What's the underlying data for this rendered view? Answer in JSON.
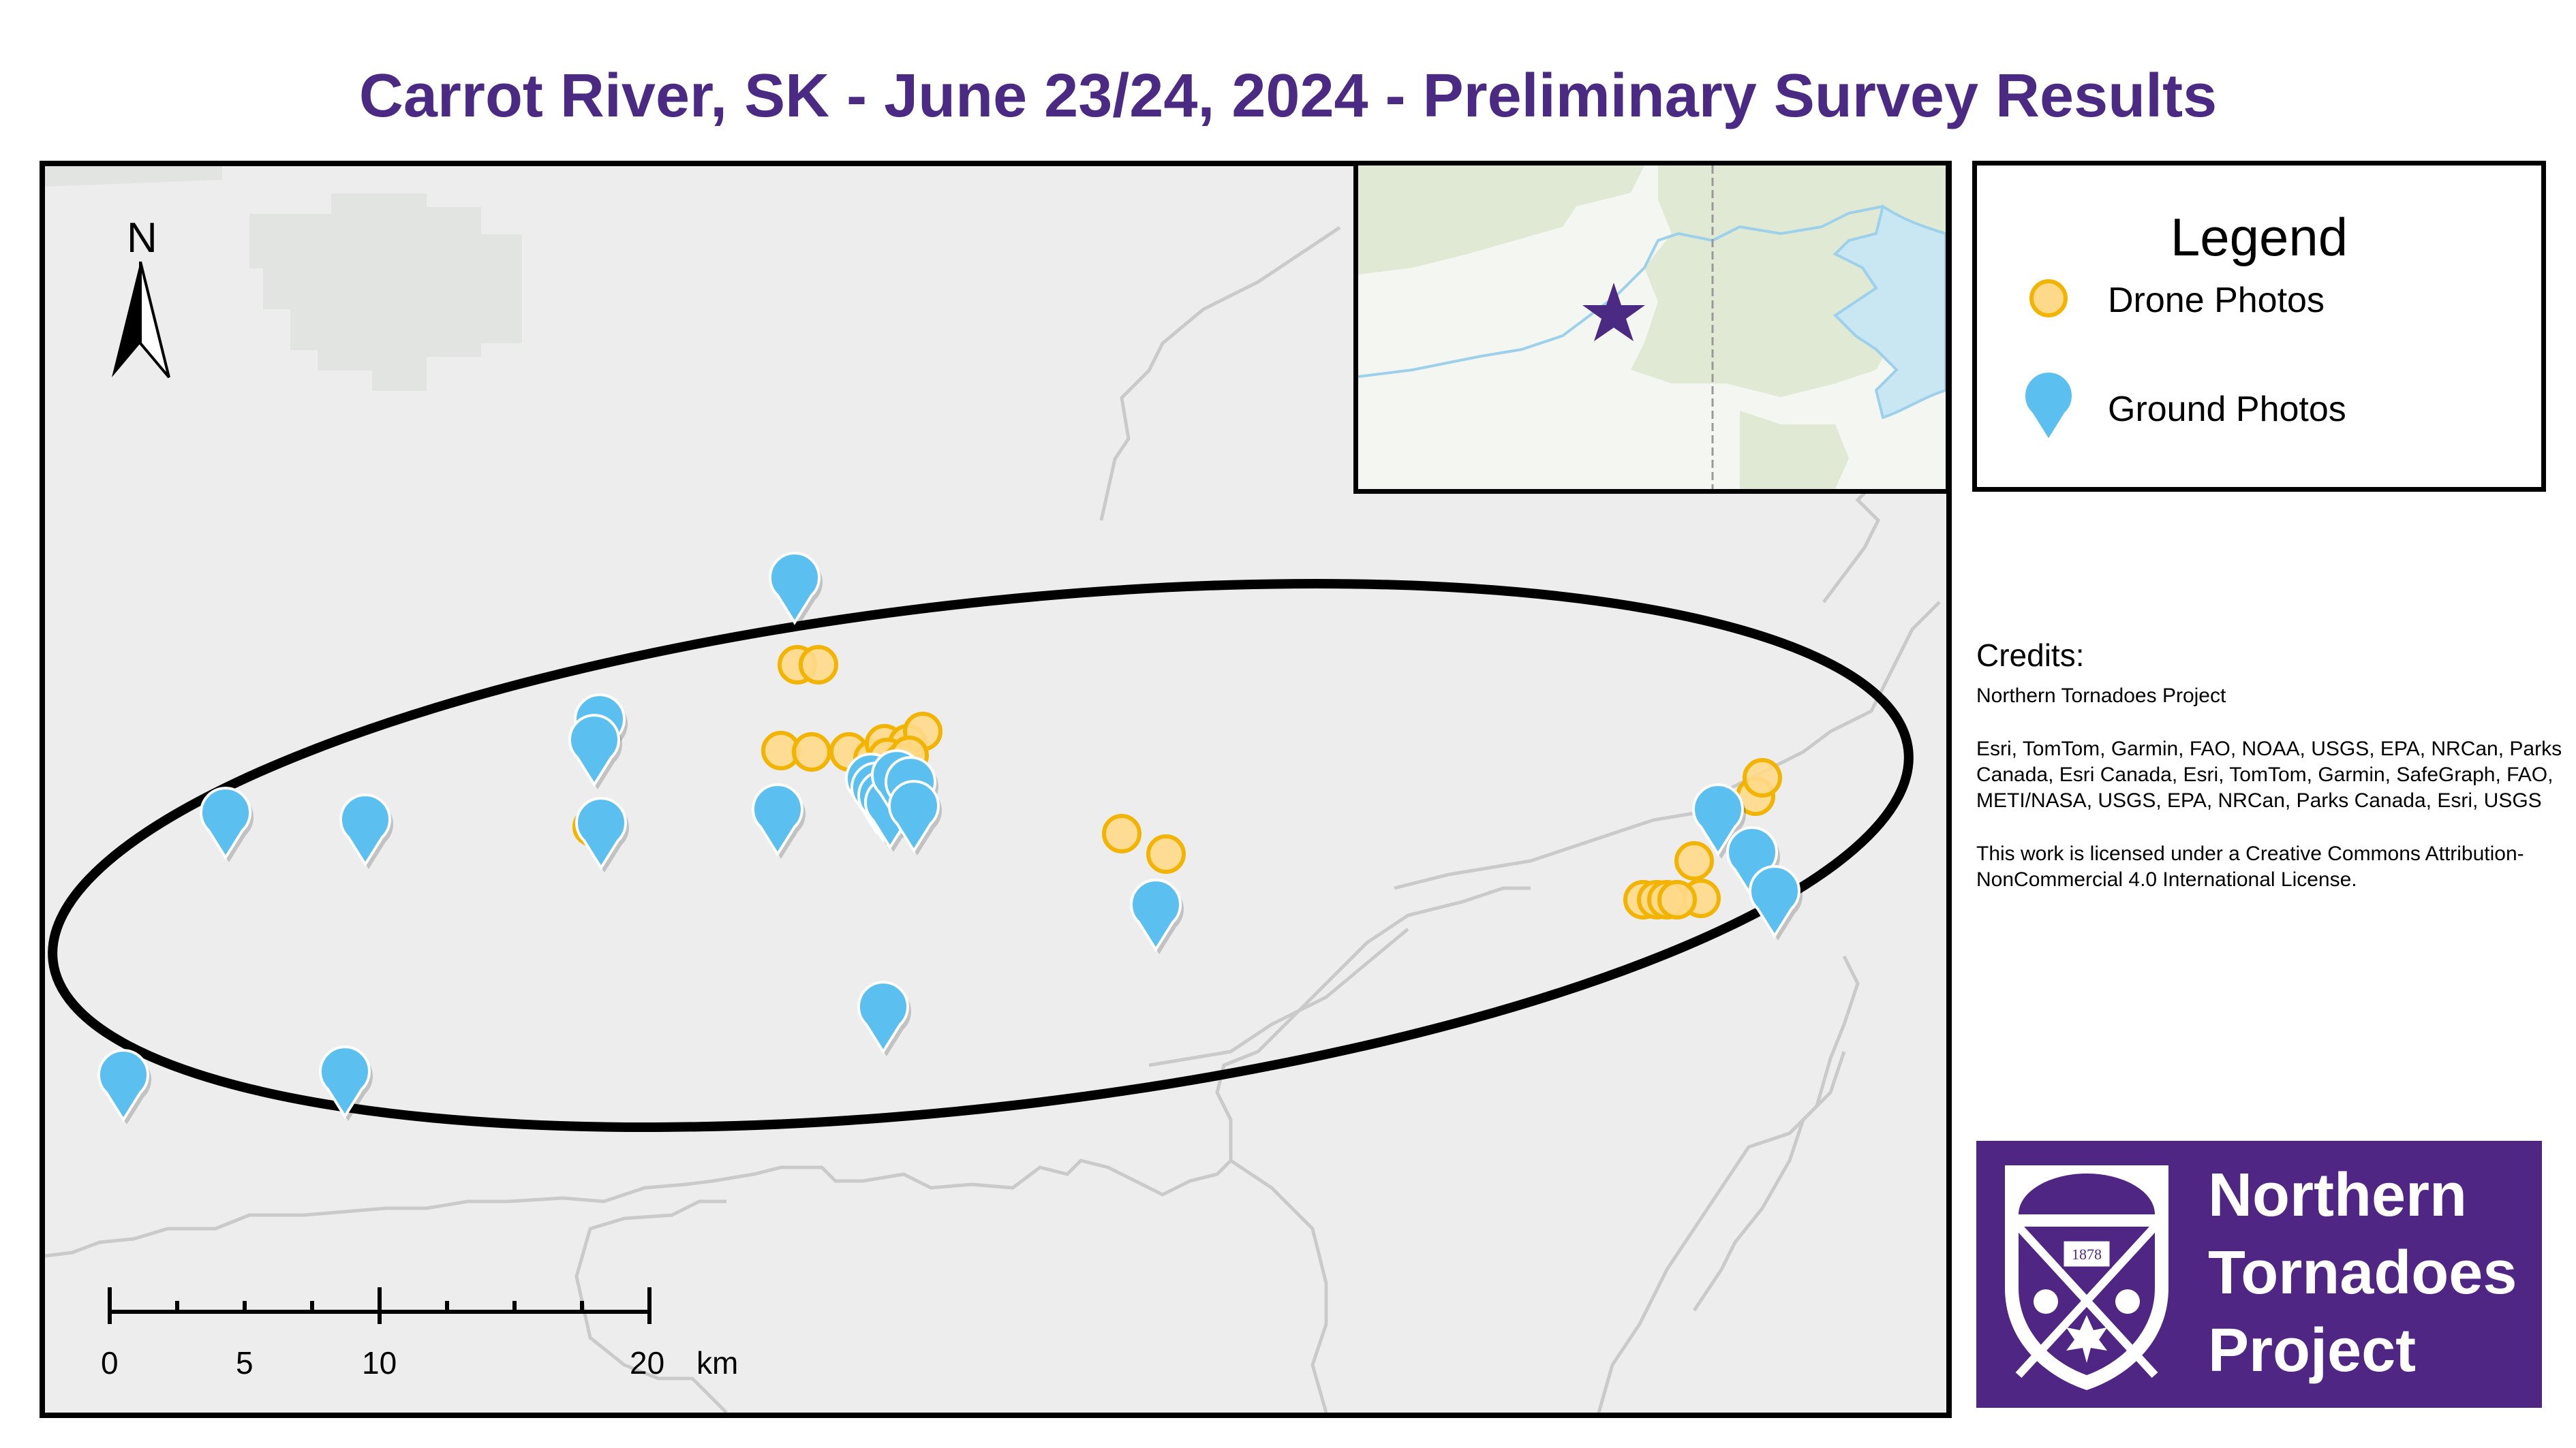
{
  "title": "Carrot River, SK - June 23/24, 2024 - Preliminary Survey Results",
  "north_arrow": {
    "label": "N",
    "icon": "north-arrow-icon"
  },
  "legend": {
    "title": "Legend",
    "items": [
      {
        "label": "Drone Photos",
        "icon": "drone-photo-circle-icon",
        "color": "#ffd98a"
      },
      {
        "label": "Ground Photos",
        "icon": "ground-photo-pin-icon",
        "color": "#5bc0ef"
      }
    ]
  },
  "credits": {
    "title": "Credits:",
    "lines": [
      "Northern Tornadoes Project",
      "Esri, TomTom, Garmin, FAO, NOAA, USGS, EPA, NRCan, Parks Canada, Esri Canada, Esri, TomTom, Garmin, SafeGraph, FAO, METI/NASA, USGS, EPA, NRCan, Parks Canada, Esri, USGS",
      "This work is licensed under a Creative Commons Attribution-NonCommercial 4.0 International License."
    ]
  },
  "scale_bar": {
    "labels": [
      "0",
      "5",
      "10",
      "20"
    ],
    "unit": "km"
  },
  "inset": {
    "marker_icon": "location-star-icon",
    "marker_color": "#4a2a82"
  },
  "logo": {
    "lines": [
      "Northern",
      "Tornadoes",
      "Project"
    ],
    "crest_year": "1878",
    "color": "#4f2683"
  },
  "colors": {
    "title": "#4a2a82",
    "map_background": "#ededed",
    "road": "#c9c9c9",
    "survey_ellipse": "#000000"
  }
}
